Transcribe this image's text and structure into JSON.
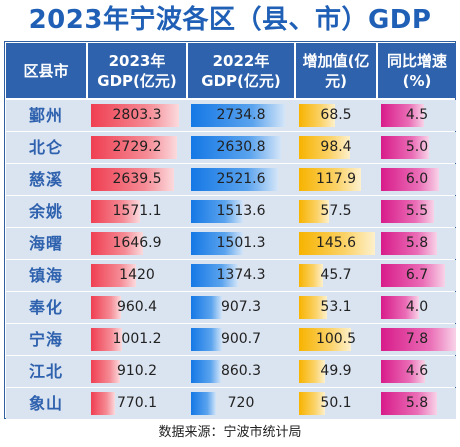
{
  "chart_data": {
    "type": "table",
    "title": "2023年宁波各区（县、市）GDP",
    "columns": [
      "区县市",
      "2023年GDP(亿元)",
      "2022年GDP(亿元)",
      "增加值(亿元)",
      "同比增速(%)"
    ],
    "rows": [
      {
        "name": "鄞州",
        "gdp2023": 2803.3,
        "gdp2022": 2734.8,
        "increase": 68.5,
        "growth": 4.5
      },
      {
        "name": "北仑",
        "gdp2023": 2729.2,
        "gdp2022": 2630.8,
        "increase": 98.4,
        "growth": 5.0
      },
      {
        "name": "慈溪",
        "gdp2023": 2639.5,
        "gdp2022": 2521.6,
        "increase": 117.9,
        "growth": 6.0
      },
      {
        "name": "余姚",
        "gdp2023": 1571.1,
        "gdp2022": 1513.6,
        "increase": 57.5,
        "growth": 5.5
      },
      {
        "name": "海曙",
        "gdp2023": 1646.9,
        "gdp2022": 1501.3,
        "increase": 145.6,
        "growth": 5.8
      },
      {
        "name": "镇海",
        "gdp2023": 1420,
        "gdp2022": 1374.3,
        "increase": 45.7,
        "growth": 6.7
      },
      {
        "name": "奉化",
        "gdp2023": 960.4,
        "gdp2022": 907.3,
        "increase": 53.1,
        "growth": 4.0
      },
      {
        "name": "宁海",
        "gdp2023": 1001.2,
        "gdp2022": 900.7,
        "increase": 100.5,
        "growth": 7.8
      },
      {
        "name": "江北",
        "gdp2023": 910.2,
        "gdp2022": 860.3,
        "increase": 49.9,
        "growth": 4.6
      },
      {
        "name": "象山",
        "gdp2023": 770.1,
        "gdp2022": 720,
        "increase": 50.1,
        "growth": 5.8
      }
    ],
    "source": "数据来源：宁波市统计局"
  }
}
